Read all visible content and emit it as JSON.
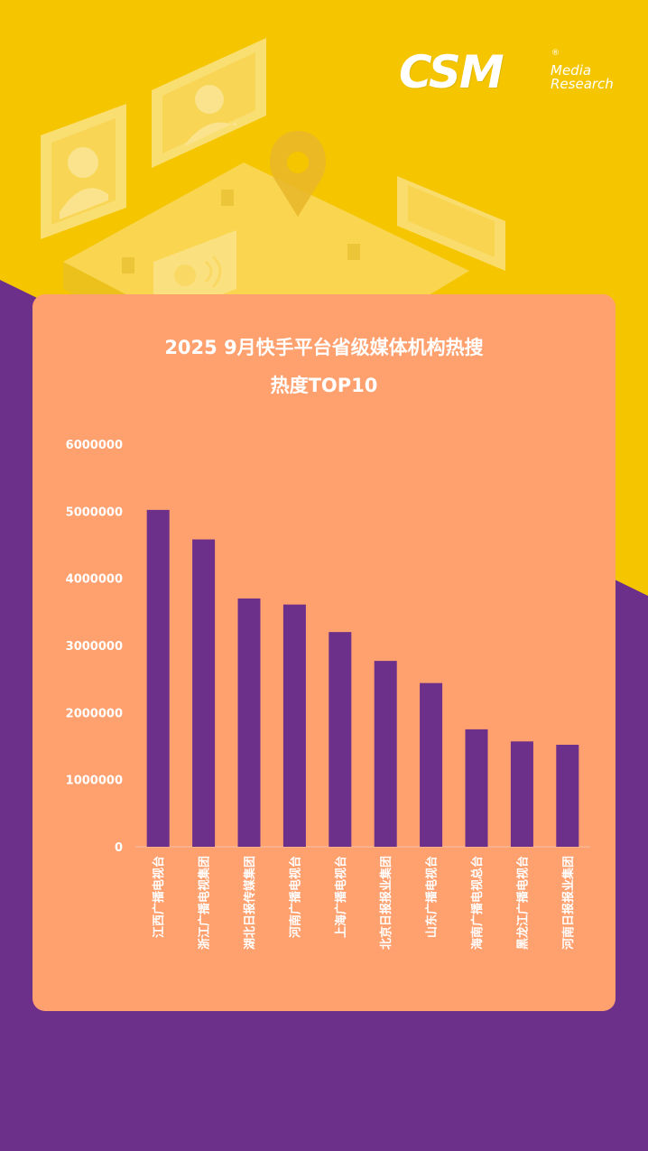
{
  "brand": {
    "logo_main": "CSM",
    "logo_reg": "®",
    "logo_sub_1": "Media",
    "logo_sub_2": "Research"
  },
  "colors": {
    "background_yellow": "#f5c600",
    "background_purple": "#6c2f8a",
    "card": "#ffa06f",
    "bar": "#6c2f8a",
    "text": "#ffffff"
  },
  "chart_data": {
    "type": "bar",
    "title_line_1": "2025 9月快手平台省级媒体机构热搜",
    "title_line_2": "热度TOP10",
    "categories": [
      "江西广播电视台",
      "浙江广播电视集团",
      "湖北日报传媒集团",
      "河南广播电视台",
      "上海广播电视台",
      "北京日报报业集团",
      "山东广播电视台",
      "海南广播电视总台",
      "黑龙江广播电视台",
      "河南日报报业集团"
    ],
    "values": [
      5020000,
      4580000,
      3700000,
      3610000,
      3200000,
      2770000,
      2440000,
      1750000,
      1570000,
      1520000
    ],
    "ylim": [
      0,
      6000000
    ],
    "yticks": [
      "0",
      "1000000",
      "2000000",
      "3000000",
      "4000000",
      "5000000",
      "6000000"
    ],
    "xlabel": "",
    "ylabel": "",
    "grid": false,
    "legend": "none"
  }
}
